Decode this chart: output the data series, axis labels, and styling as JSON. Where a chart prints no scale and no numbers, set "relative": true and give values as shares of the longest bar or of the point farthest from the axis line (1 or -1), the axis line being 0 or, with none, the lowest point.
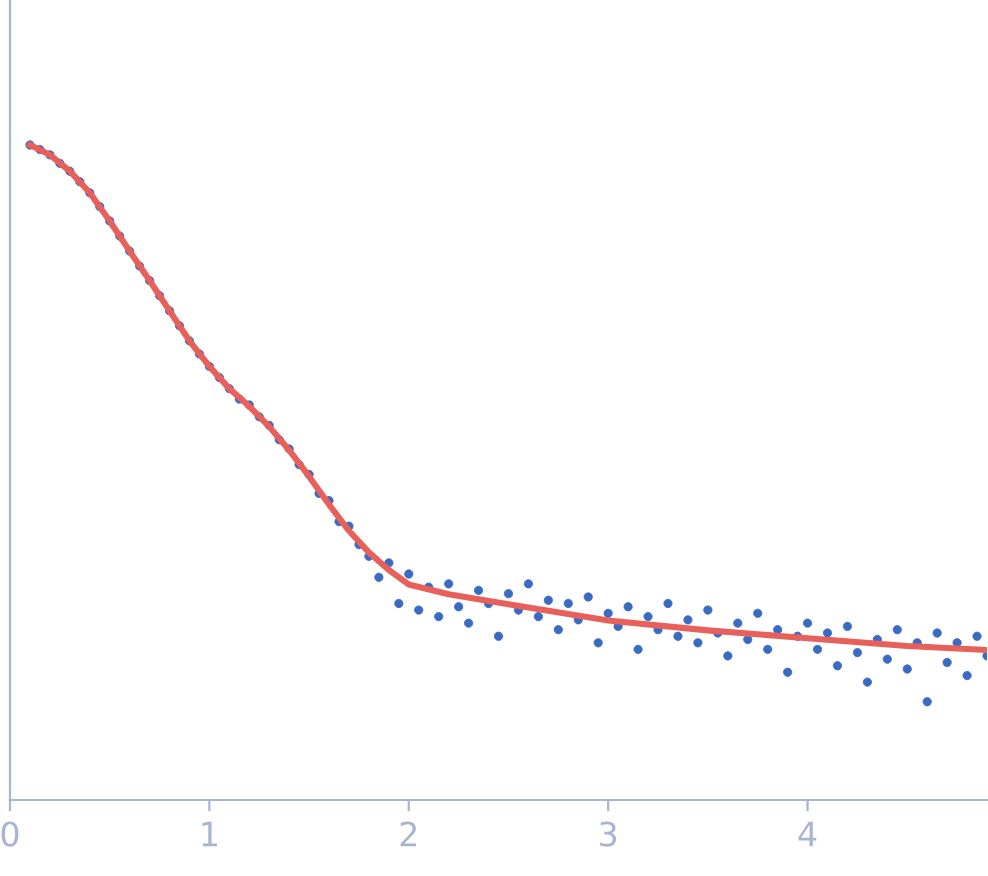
{
  "chart_data": {
    "type": "scatter",
    "relative": true,
    "tick_labels": "x",
    "grid": false,
    "legend": false,
    "xlim": [
      0,
      4.9
    ],
    "xticks": [
      0,
      1,
      2,
      3,
      4
    ],
    "series": [
      {
        "marker": "circle",
        "color": "#3a6bc4",
        "x": [
          0.1,
          0.15,
          0.2,
          0.25,
          0.3,
          0.35,
          0.4,
          0.45,
          0.5,
          0.55,
          0.6,
          0.65,
          0.7,
          0.75,
          0.8,
          0.85,
          0.9,
          0.95,
          1.0,
          1.05,
          1.1,
          1.15,
          1.2,
          1.25,
          1.3,
          1.35,
          1.4,
          1.45,
          1.5,
          1.55,
          1.6,
          1.65,
          1.7,
          1.75,
          1.8,
          1.85,
          1.9,
          1.95,
          2.0,
          2.05,
          2.1,
          2.15,
          2.2,
          2.25,
          2.3,
          2.35,
          2.4,
          2.45,
          2.5,
          2.55,
          2.6,
          2.65,
          2.7,
          2.75,
          2.8,
          2.85,
          2.9,
          2.95,
          3.0,
          3.05,
          3.1,
          3.15,
          3.2,
          3.25,
          3.3,
          3.35,
          3.4,
          3.45,
          3.5,
          3.55,
          3.6,
          3.65,
          3.7,
          3.75,
          3.8,
          3.85,
          3.9,
          3.95,
          4.0,
          4.05,
          4.1,
          4.15,
          4.2,
          4.25,
          4.3,
          4.35,
          4.4,
          4.45,
          4.5,
          4.55,
          4.6,
          4.65,
          4.7,
          4.75,
          4.8,
          4.85,
          4.9
        ],
        "values": [
          1.0,
          0.993,
          0.985,
          0.972,
          0.96,
          0.944,
          0.927,
          0.906,
          0.884,
          0.861,
          0.838,
          0.815,
          0.793,
          0.77,
          0.747,
          0.724,
          0.701,
          0.681,
          0.662,
          0.645,
          0.628,
          0.612,
          0.603,
          0.585,
          0.572,
          0.55,
          0.536,
          0.512,
          0.497,
          0.468,
          0.457,
          0.425,
          0.418,
          0.39,
          0.372,
          0.34,
          0.362,
          0.3,
          0.345,
          0.29,
          0.325,
          0.28,
          0.33,
          0.295,
          0.27,
          0.32,
          0.3,
          0.25,
          0.315,
          0.29,
          0.33,
          0.28,
          0.305,
          0.26,
          0.3,
          0.275,
          0.31,
          0.24,
          0.285,
          0.265,
          0.295,
          0.23,
          0.28,
          0.26,
          0.3,
          0.25,
          0.275,
          0.24,
          0.29,
          0.255,
          0.22,
          0.27,
          0.245,
          0.285,
          0.23,
          0.26,
          0.195,
          0.25,
          0.27,
          0.23,
          0.255,
          0.205,
          0.265,
          0.225,
          0.18,
          0.245,
          0.215,
          0.26,
          0.2,
          0.24,
          0.15,
          0.255,
          0.21,
          0.24,
          0.19,
          0.25,
          0.22
        ]
      },
      {
        "type": "line",
        "color": "#e8605a",
        "x": [
          0.1,
          0.2,
          0.3,
          0.4,
          0.5,
          0.6,
          0.7,
          0.8,
          0.9,
          1.0,
          1.1,
          1.2,
          1.3,
          1.4,
          1.5,
          1.6,
          1.7,
          1.8,
          1.9,
          2.0,
          2.2,
          2.5,
          3.0,
          3.5,
          4.0,
          4.5,
          4.9
        ],
        "values": [
          1.0,
          0.985,
          0.96,
          0.927,
          0.884,
          0.838,
          0.793,
          0.747,
          0.701,
          0.662,
          0.628,
          0.601,
          0.57,
          0.534,
          0.494,
          0.451,
          0.411,
          0.378,
          0.351,
          0.329,
          0.314,
          0.299,
          0.274,
          0.259,
          0.247,
          0.235,
          0.229
        ]
      }
    ]
  }
}
